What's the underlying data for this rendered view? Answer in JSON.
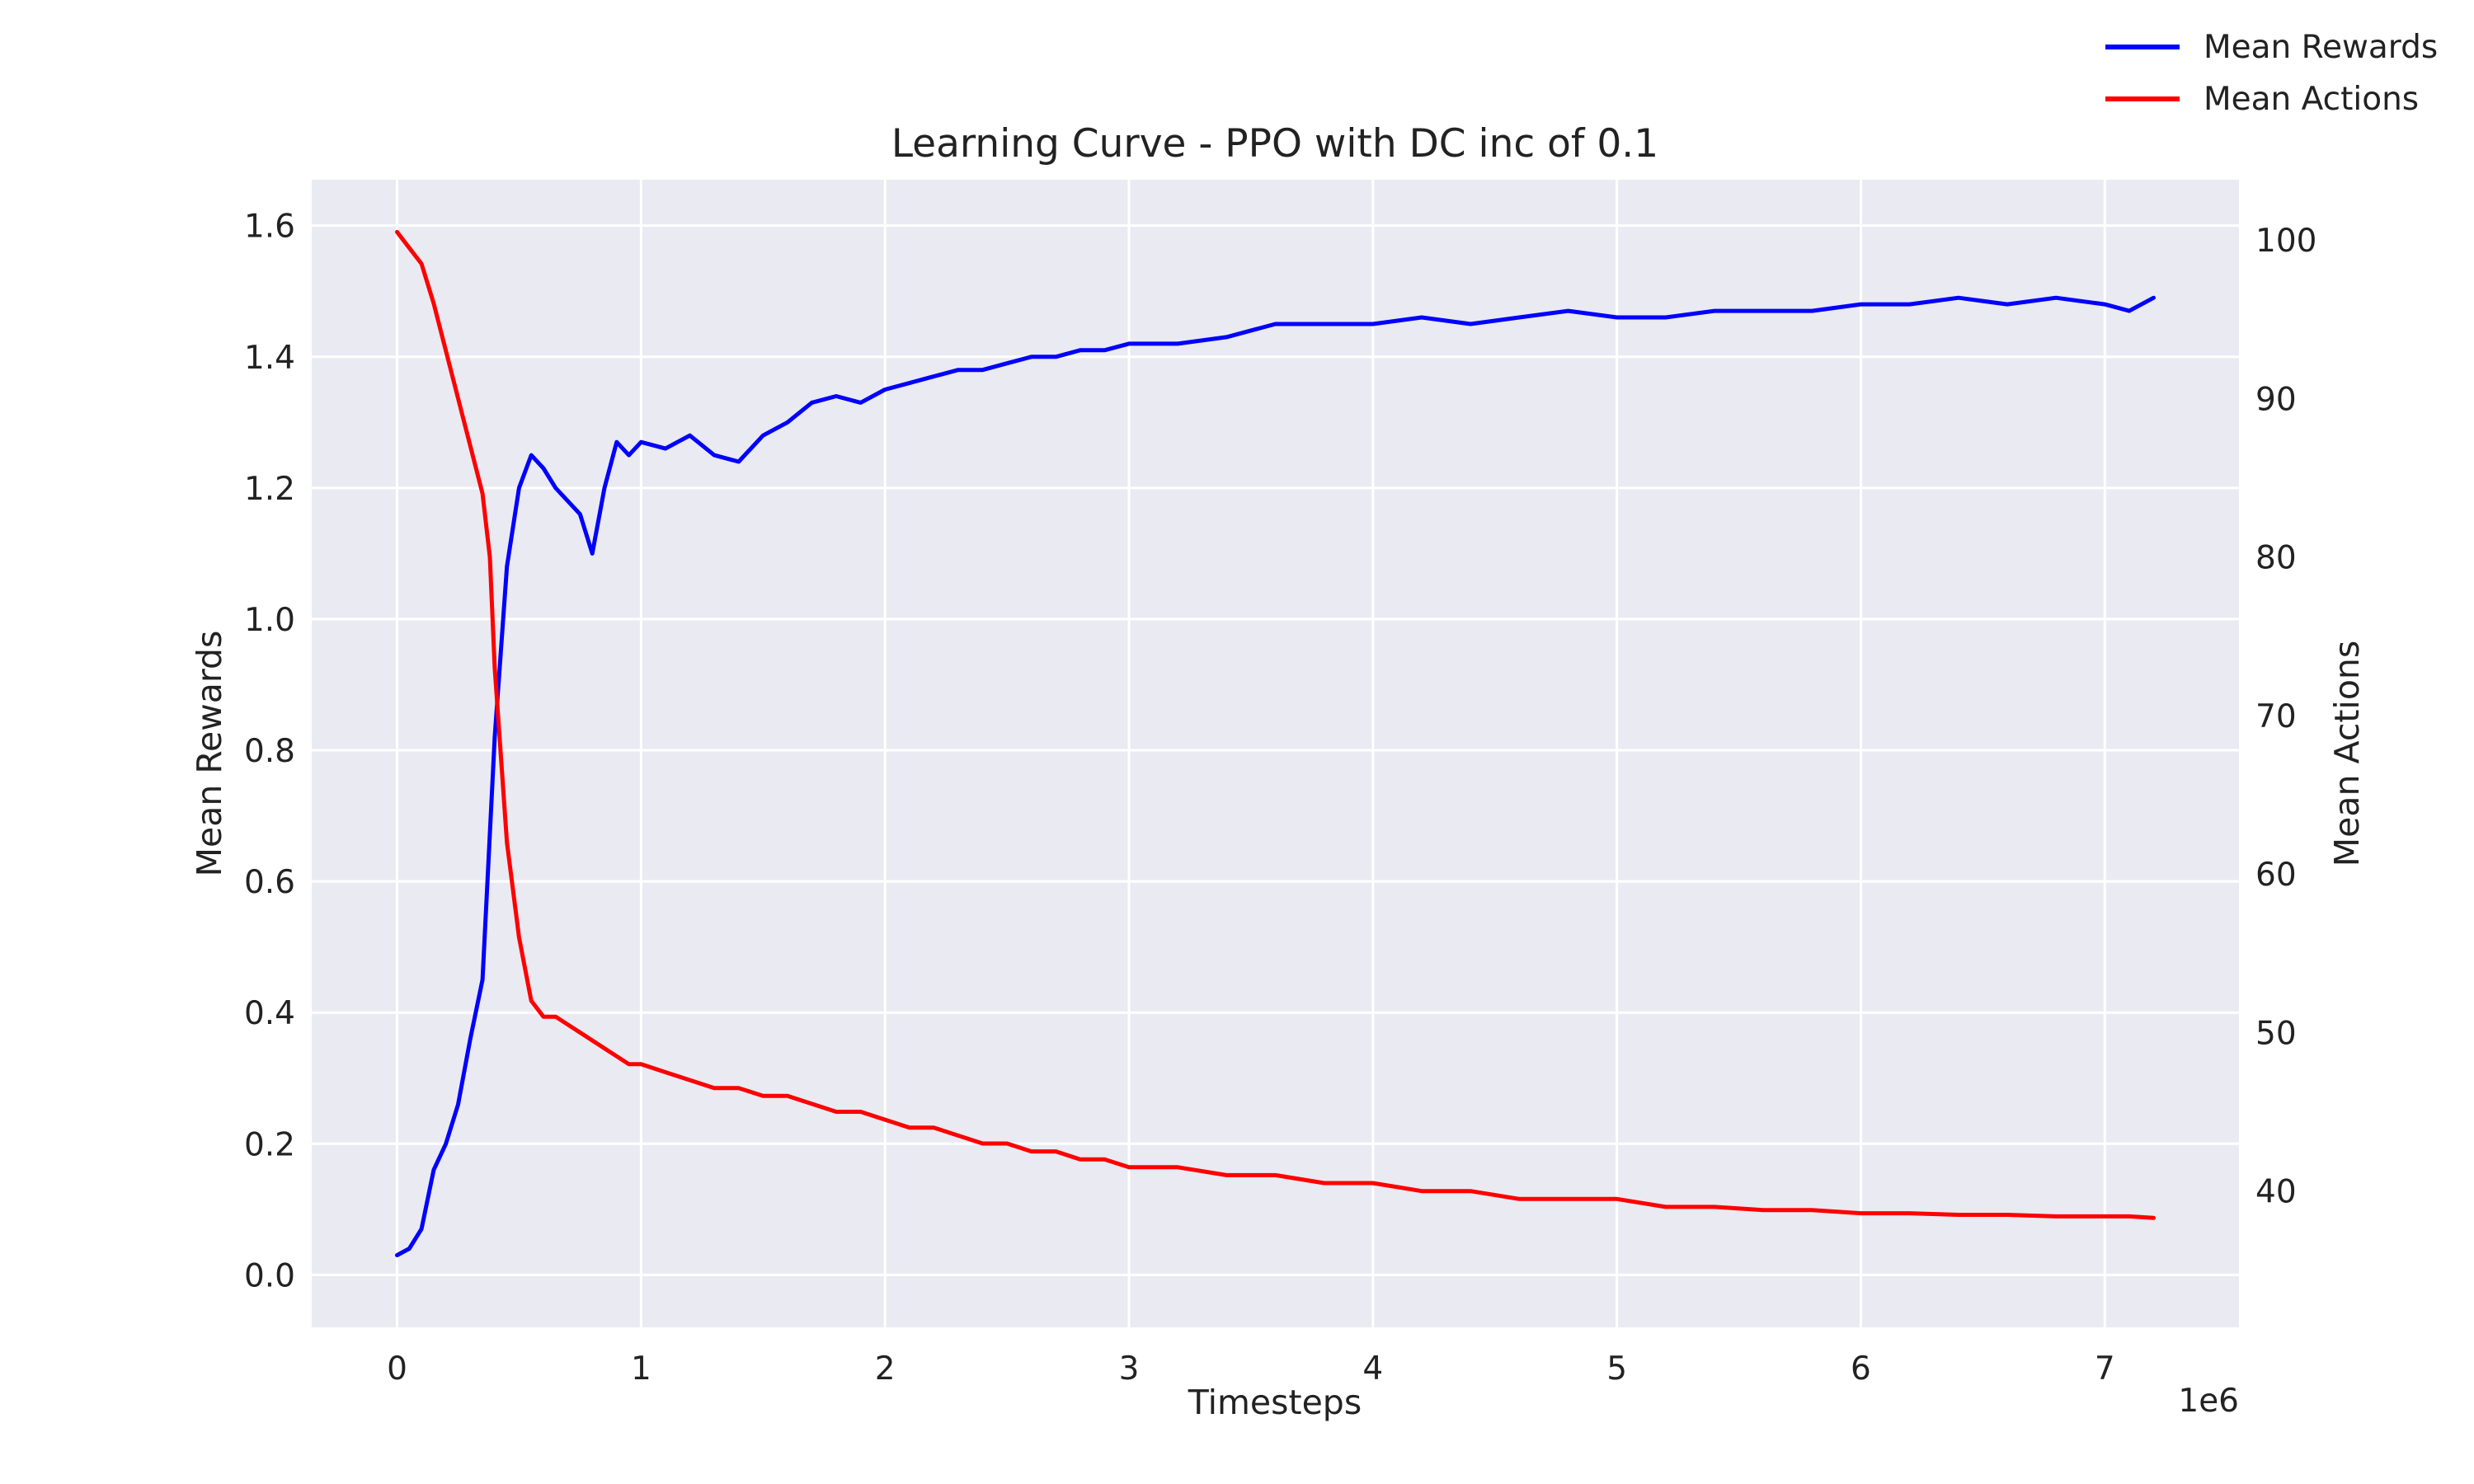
{
  "chart_data": {
    "type": "line",
    "title": "Learning Curve - PPO with DC inc of 0.1",
    "xlabel": "Timesteps",
    "x_offset_label": "1e6",
    "ylabel_left": "Mean Rewards",
    "ylabel_right": "Mean Actions",
    "xlim": [
      -350000,
      7550000
    ],
    "ylim_left": [
      -0.08,
      1.67
    ],
    "ylim_right": [
      31.4,
      103.8
    ],
    "x_ticks": [
      0,
      1000000,
      2000000,
      3000000,
      4000000,
      5000000,
      6000000,
      7000000
    ],
    "x_tick_labels": [
      "0",
      "1",
      "2",
      "3",
      "4",
      "5",
      "6",
      "7"
    ],
    "y_left_ticks": [
      0.0,
      0.2,
      0.4,
      0.6,
      0.8,
      1.0,
      1.2,
      1.4,
      1.6
    ],
    "y_left_tick_labels": [
      "0.0",
      "0.2",
      "0.4",
      "0.6",
      "0.8",
      "1.0",
      "1.2",
      "1.4",
      "1.6"
    ],
    "y_right_ticks": [
      40,
      50,
      60,
      70,
      80,
      90,
      100
    ],
    "y_right_tick_labels": [
      "40",
      "50",
      "60",
      "70",
      "80",
      "90",
      "100"
    ],
    "grid": true,
    "legend_position": "top-right",
    "series": [
      {
        "name": "Mean Rewards",
        "axis": "left",
        "color": "#0000ff",
        "x": [
          0,
          50000,
          100000,
          150000,
          200000,
          250000,
          300000,
          350000,
          400000,
          450000,
          500000,
          550000,
          600000,
          650000,
          700000,
          750000,
          800000,
          850000,
          900000,
          950000,
          1000000,
          1100000,
          1200000,
          1300000,
          1400000,
          1500000,
          1600000,
          1700000,
          1800000,
          1900000,
          2000000,
          2100000,
          2200000,
          2300000,
          2400000,
          2500000,
          2600000,
          2700000,
          2800000,
          2900000,
          3000000,
          3200000,
          3400000,
          3600000,
          3800000,
          4000000,
          4200000,
          4400000,
          4600000,
          4800000,
          5000000,
          5200000,
          5400000,
          5600000,
          5800000,
          6000000,
          6200000,
          6400000,
          6600000,
          6800000,
          7000000,
          7100000,
          7200000
        ],
        "y": [
          0.03,
          0.04,
          0.07,
          0.16,
          0.2,
          0.26,
          0.36,
          0.45,
          0.82,
          1.08,
          1.2,
          1.25,
          1.23,
          1.2,
          1.18,
          1.16,
          1.1,
          1.2,
          1.27,
          1.25,
          1.27,
          1.26,
          1.28,
          1.25,
          1.24,
          1.28,
          1.3,
          1.33,
          1.34,
          1.33,
          1.35,
          1.36,
          1.37,
          1.38,
          1.38,
          1.39,
          1.4,
          1.4,
          1.41,
          1.41,
          1.42,
          1.42,
          1.43,
          1.45,
          1.45,
          1.45,
          1.46,
          1.45,
          1.46,
          1.47,
          1.46,
          1.46,
          1.47,
          1.47,
          1.47,
          1.48,
          1.48,
          1.49,
          1.48,
          1.49,
          1.48,
          1.47,
          1.49
        ]
      },
      {
        "name": "Mean Actions",
        "axis": "right",
        "color": "#ff0000",
        "x": [
          0,
          50000,
          100000,
          150000,
          200000,
          250000,
          300000,
          350000,
          380000,
          400000,
          450000,
          500000,
          550000,
          600000,
          650000,
          700000,
          750000,
          800000,
          850000,
          900000,
          950000,
          1000000,
          1100000,
          1200000,
          1300000,
          1400000,
          1500000,
          1600000,
          1700000,
          1800000,
          1900000,
          2000000,
          2100000,
          2200000,
          2300000,
          2400000,
          2500000,
          2600000,
          2700000,
          2800000,
          2900000,
          3000000,
          3200000,
          3400000,
          3600000,
          3800000,
          4000000,
          4200000,
          4400000,
          4600000,
          4800000,
          5000000,
          5200000,
          5400000,
          5600000,
          5800000,
          6000000,
          6200000,
          6400000,
          6600000,
          6800000,
          7000000,
          7100000,
          7200000
        ],
        "y": [
          100.5,
          99.5,
          98.5,
          96.0,
          93.0,
          90.0,
          87.0,
          84.0,
          80.0,
          73.0,
          62.0,
          56.0,
          52.0,
          51.0,
          51.0,
          50.5,
          50.0,
          49.5,
          49.0,
          48.5,
          48.0,
          48.0,
          47.5,
          47.0,
          46.5,
          46.5,
          46.0,
          46.0,
          45.5,
          45.0,
          45.0,
          44.5,
          44.0,
          44.0,
          43.5,
          43.0,
          43.0,
          42.5,
          42.5,
          42.0,
          42.0,
          41.5,
          41.5,
          41.0,
          41.0,
          40.5,
          40.5,
          40.0,
          40.0,
          39.5,
          39.5,
          39.5,
          39.0,
          39.0,
          38.8,
          38.8,
          38.6,
          38.6,
          38.5,
          38.5,
          38.4,
          38.4,
          38.4,
          38.3
        ]
      }
    ]
  }
}
